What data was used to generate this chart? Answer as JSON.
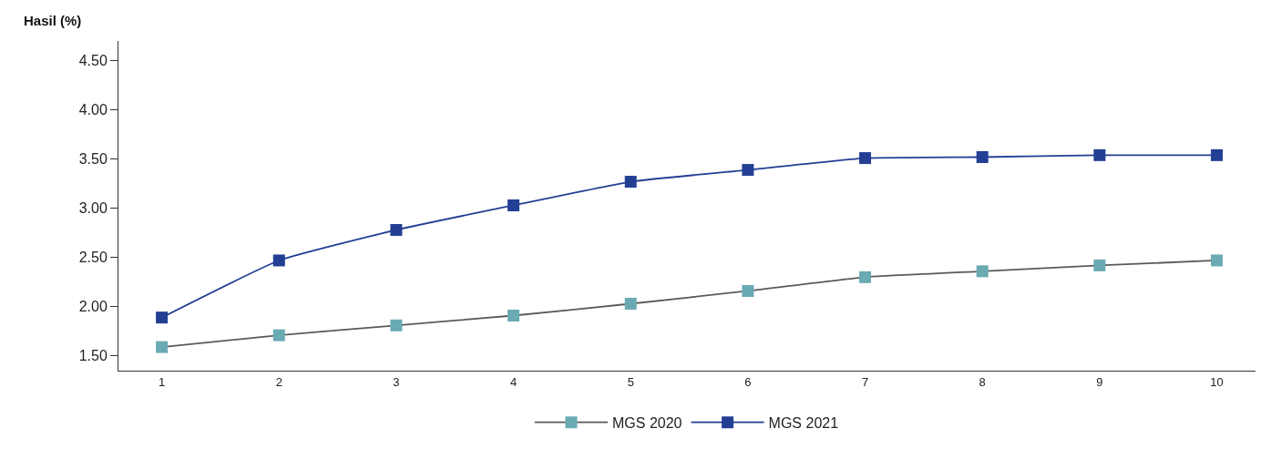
{
  "chart_data": {
    "type": "line",
    "ylabel": "Hasil (%)",
    "x": [
      1,
      2,
      3,
      4,
      5,
      6,
      7,
      8,
      9,
      10
    ],
    "series": [
      {
        "name": "MGS 2020",
        "color": "#6aaab3",
        "values": [
          1.59,
          1.71,
          1.81,
          1.91,
          2.03,
          2.16,
          2.3,
          2.36,
          2.42,
          2.47
        ]
      },
      {
        "name": "MGS 2021",
        "color": "#233f94",
        "values": [
          1.89,
          2.47,
          2.78,
          3.03,
          3.27,
          3.39,
          3.51,
          3.52,
          3.54,
          3.54
        ]
      }
    ],
    "xlim": [
      0.63,
      10.33
    ],
    "xticks": [
      1,
      2,
      3,
      4,
      5,
      6,
      7,
      8,
      9,
      10
    ],
    "ylim": [
      1.35,
      4.7
    ],
    "yticks": [
      {
        "value": 1.5,
        "label": "1.50"
      },
      {
        "value": 2,
        "label": "2.00"
      },
      {
        "value": 2.5,
        "label": "2.50"
      },
      {
        "value": 3,
        "label": "3.00"
      },
      {
        "value": 3.5,
        "label": "3.50"
      },
      {
        "value": 4,
        "label": "4.00"
      },
      {
        "value": 4.5,
        "label": "4.50"
      }
    ],
    "marker": "square",
    "line_style": "solid",
    "legend": "bottom"
  }
}
